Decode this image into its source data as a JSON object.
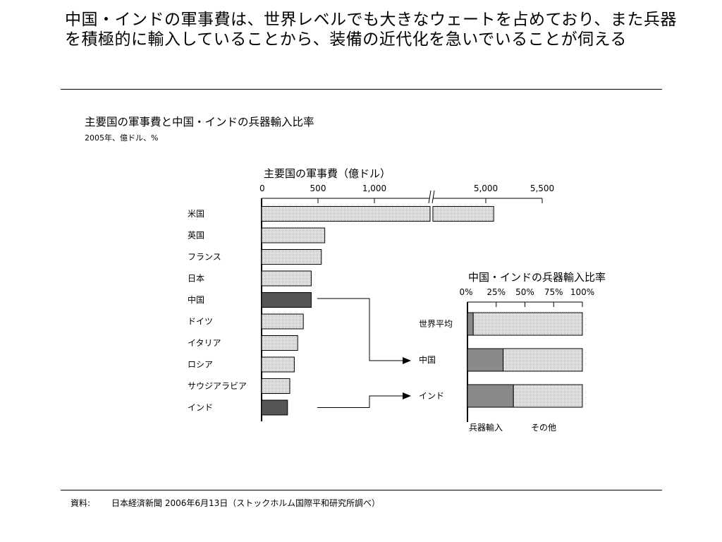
{
  "slide": {
    "headline": "中国・インドの軍事費は、世界レベルでも大きなウェートを占めており、また兵器を積極的に輸入していることから、装備の近代化を急いでいることが伺える",
    "chart_title": "主要国の軍事費と中国・インドの兵器輸入比率",
    "chart_subtitle": "2005年、億ドル、%",
    "source_label": "資料:",
    "source_text": "日本経済新聞 2006年6月13日（ストックホルム国際平和研究所調べ）"
  },
  "colors": {
    "bar_fill": "#e4e4e4",
    "bar_highlight": "#555555",
    "axis": "#000000"
  },
  "chart_data": [
    {
      "type": "bar",
      "orientation": "horizontal",
      "title": "主要国の軍事費（億ドル）",
      "axis_break": true,
      "xticks": [
        "0",
        "500",
        "1,000",
        "5,000",
        "5,500"
      ],
      "categories": [
        "米国",
        "英国",
        "フランス",
        "日本",
        "中国",
        "ドイツ",
        "イタリア",
        "ロシア",
        "サウジアラビア",
        "インド"
      ],
      "values": [
        5070,
        560,
        530,
        440,
        440,
        370,
        320,
        290,
        250,
        230
      ],
      "highlight": [
        "中国",
        "インド"
      ]
    },
    {
      "type": "bar",
      "orientation": "horizontal",
      "stacked": true,
      "title": "中国・インドの兵器輸入比率",
      "xticks": [
        "0%",
        "25%",
        "50%",
        "75%",
        "100%"
      ],
      "xlim": [
        0,
        100
      ],
      "categories": [
        "世界平均",
        "中国",
        "インド"
      ],
      "series": [
        {
          "name": "兵器輸入",
          "values": [
            5,
            31,
            40
          ]
        },
        {
          "name": "その他",
          "values": [
            95,
            69,
            60
          ]
        }
      ]
    }
  ]
}
